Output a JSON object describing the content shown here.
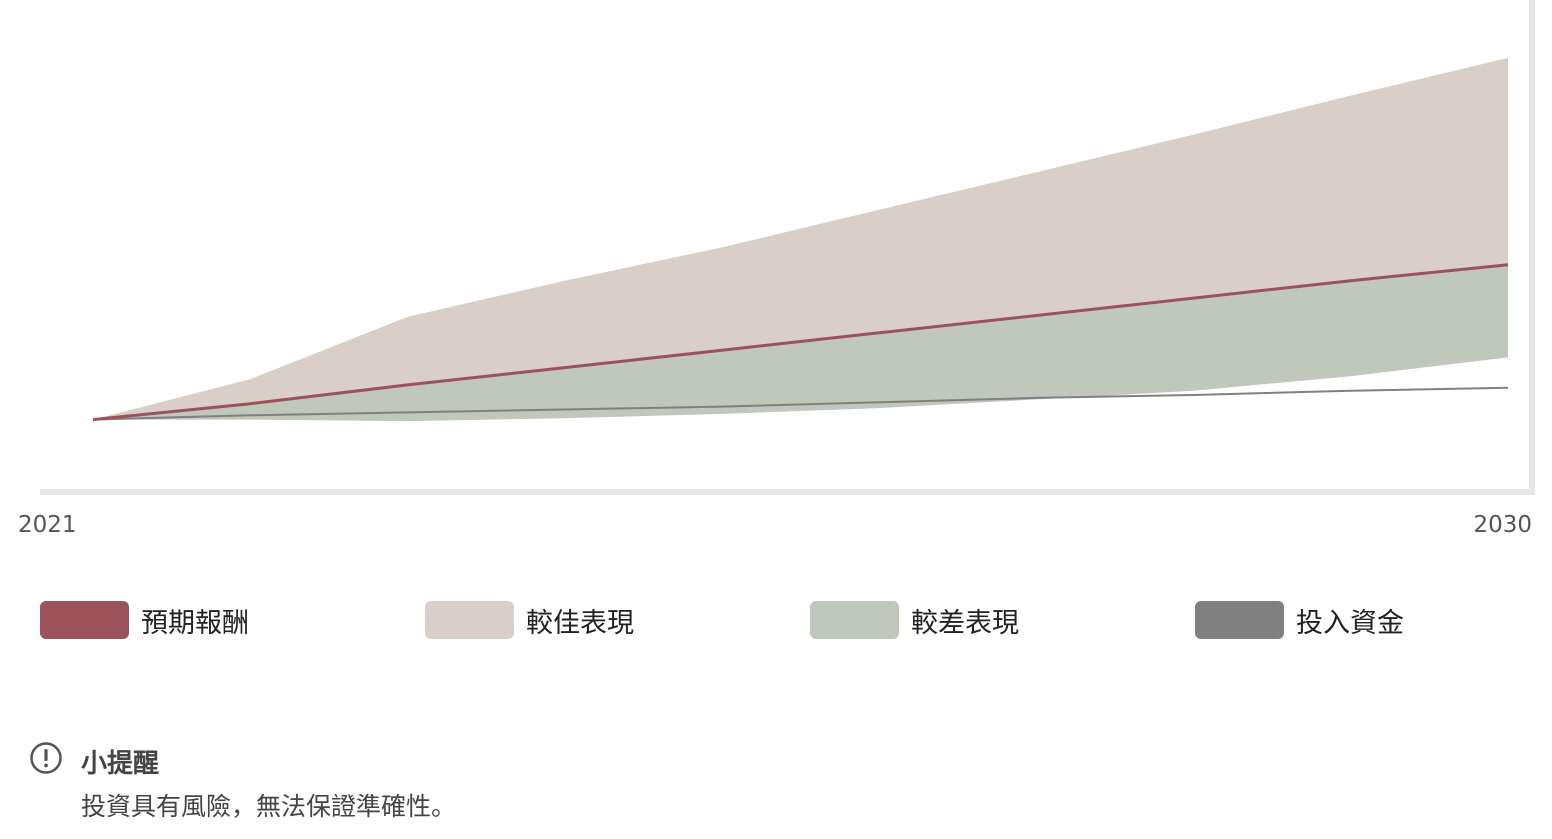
{
  "chart_data": {
    "type": "area",
    "x": [
      2021,
      2022,
      2023,
      2024,
      2025,
      2026,
      2027,
      2028,
      2029,
      2030
    ],
    "xlabel": "",
    "ylabel": "",
    "x_ticks": [
      "2021",
      "2030"
    ],
    "series": [
      {
        "name": "較佳表現",
        "kind": "area-upper",
        "color": "#d9cec8",
        "values": [
          100,
          128,
          171,
          196,
          219,
          245,
          271,
          297,
          324,
          350
        ]
      },
      {
        "name": "預期報酬",
        "kind": "line",
        "color": "#9b525b",
        "values": [
          100,
          111,
          124,
          136,
          148,
          160,
          172,
          184,
          196,
          207
        ]
      },
      {
        "name": "較差表現",
        "kind": "area-lower",
        "color": "#c0c7bb",
        "values": [
          100,
          100,
          99,
          101,
          104,
          108,
          114,
          120,
          130,
          143
        ]
      },
      {
        "name": "投入資金",
        "kind": "line",
        "color": "#808080",
        "values": [
          100,
          103,
          105,
          107,
          109,
          112,
          115,
          117,
          120,
          122
        ]
      }
    ],
    "ylim": [
      50,
      390
    ],
    "grid": false,
    "legend_position": "bottom"
  },
  "legend": [
    {
      "label": "預期報酬",
      "color": "#9b525b"
    },
    {
      "label": "較佳表現",
      "color": "#d9cec8"
    },
    {
      "label": "較差表現",
      "color": "#c0c7bb"
    },
    {
      "label": "投入資金",
      "color": "#808080"
    }
  ],
  "note": {
    "icon": "exclamation-circle-icon",
    "title": "小提醒",
    "text": "投資具有風險，無法保證準確性。"
  },
  "colors": {
    "axis": "#e6e6e6",
    "tick_text": "#555555"
  }
}
